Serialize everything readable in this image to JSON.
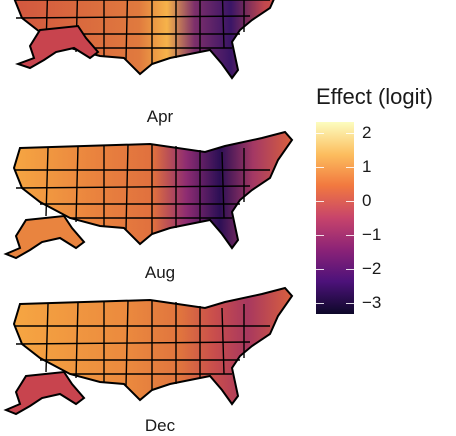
{
  "panels": [
    {
      "label": "Apr"
    },
    {
      "label": "Aug"
    },
    {
      "label": "Dec"
    }
  ],
  "legend": {
    "title": "Effect (logit)",
    "ticks": [
      "2",
      "1",
      "0",
      "−1",
      "−2",
      "−3"
    ],
    "palette": [
      "#fcfdbf",
      "#fcbd5e",
      "#f2793f",
      "#c7446b",
      "#8a2277",
      "#4d127a",
      "#0d0829"
    ]
  },
  "colors": {
    "border": "#000000",
    "high": "#f7b04a",
    "mid": "#d5543f",
    "low": "#2a1058"
  }
}
